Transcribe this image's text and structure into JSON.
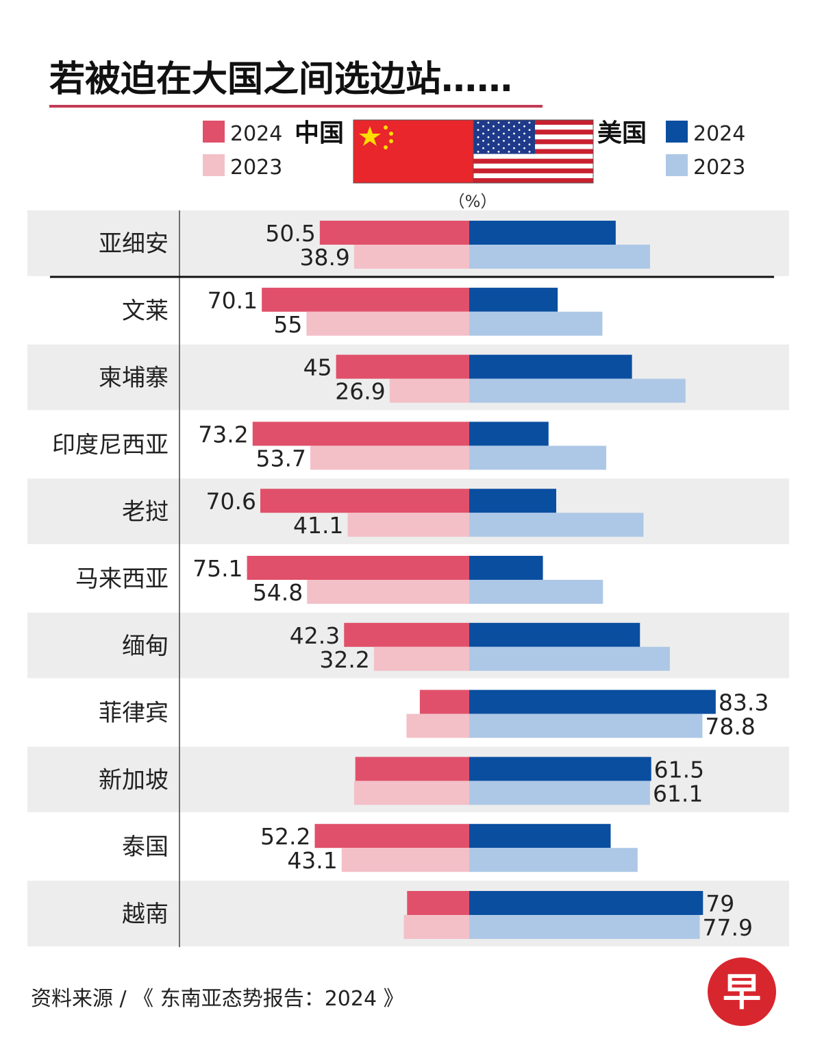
{
  "chart_data": {
    "type": "bar",
    "title": "若被迫在大国之间选边站……",
    "unit": "（%）",
    "legend": {
      "china_label": "中国",
      "us_label": "美国",
      "years": [
        "2024",
        "2023"
      ]
    },
    "colors": {
      "china_2024": "#e0506a",
      "china_2023": "#f3c0c8",
      "us_2024": "#0a4ea0",
      "us_2023": "#adc8e6"
    },
    "xlim": [
      -100,
      100
    ],
    "categories": [
      "亚细安",
      "文莱",
      "柬埔寨",
      "印度尼西亚",
      "老挝",
      "马来西亚",
      "缅甸",
      "菲律宾",
      "新加坡",
      "泰国",
      "越南"
    ],
    "series": [
      {
        "name": "中国 2024",
        "values": [
          50.5,
          70.1,
          45,
          73.2,
          70.6,
          75.1,
          42.3,
          16.7,
          38.5,
          52.2,
          21
        ],
        "labeled": [
          true,
          true,
          true,
          true,
          true,
          true,
          true,
          false,
          false,
          true,
          false
        ]
      },
      {
        "name": "中国 2023",
        "values": [
          38.9,
          55,
          26.9,
          53.7,
          41.1,
          54.8,
          32.2,
          21.2,
          38.9,
          43.1,
          22.1
        ],
        "labeled": [
          true,
          true,
          true,
          true,
          true,
          true,
          true,
          false,
          false,
          true,
          false
        ]
      },
      {
        "name": "美国 2024",
        "values": [
          49.5,
          29.9,
          55,
          26.8,
          29.4,
          24.9,
          57.7,
          83.3,
          61.5,
          47.8,
          79
        ],
        "labeled": [
          false,
          false,
          false,
          false,
          false,
          false,
          false,
          true,
          true,
          false,
          true
        ]
      },
      {
        "name": "美国 2023",
        "values": [
          61.1,
          45,
          73.1,
          46.3,
          58.9,
          45.2,
          67.8,
          78.8,
          61.1,
          56.9,
          77.9
        ],
        "labeled": [
          false,
          false,
          false,
          false,
          false,
          false,
          false,
          true,
          true,
          false,
          true
        ]
      }
    ],
    "source": "资料来源 / 《 东南亚态势报告：2024 》",
    "logo_text": "早"
  }
}
